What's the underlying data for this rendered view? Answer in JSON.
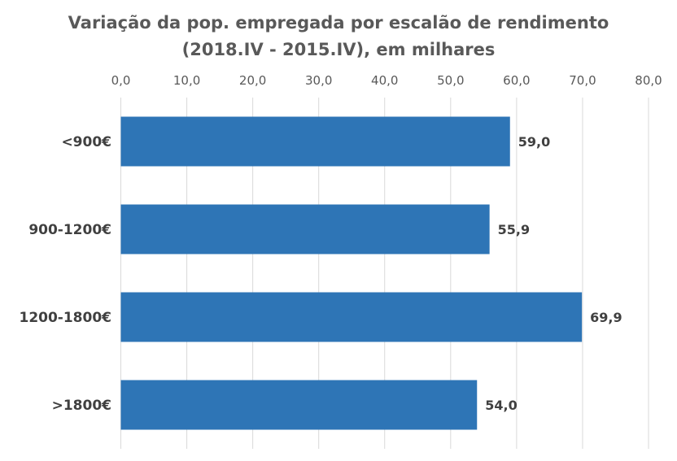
{
  "chart_data": {
    "type": "bar",
    "orientation": "horizontal",
    "title": [
      "Variação da pop. empregada por escalão de rendimento",
      "(2018.IV - 2015.IV), em milhares"
    ],
    "categories": [
      "<900€",
      "900-1200€",
      "1200-1800€",
      ">1800€"
    ],
    "values": [
      59.0,
      55.9,
      69.9,
      54.0
    ],
    "data_labels": [
      "59,0",
      "55,9",
      "69,9",
      "54,0"
    ],
    "xlim": [
      0,
      80
    ],
    "x_ticks": [
      "0,0",
      "10,0",
      "20,0",
      "30,0",
      "40,0",
      "50,0",
      "60,0",
      "70,0",
      "80,0"
    ],
    "x_axis_position": "top",
    "grid": true,
    "legend": "none",
    "colors": {
      "bar": "#2E75B6",
      "grid": "#D9D9D9",
      "title": "#595959"
    }
  }
}
